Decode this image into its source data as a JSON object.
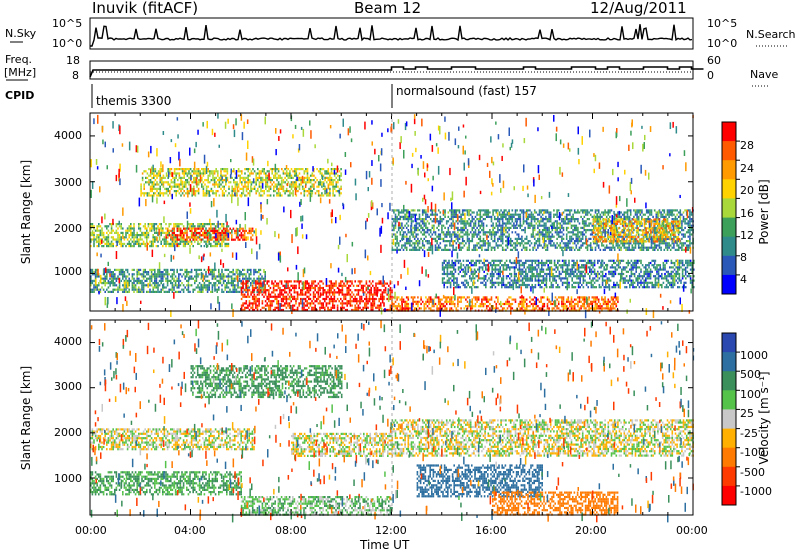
{
  "header": {
    "station": "Inuvik (fitACF)",
    "beam": "Beam 12",
    "date": "12/Aug/2011"
  },
  "panels": {
    "nsky": {
      "label": "N.Sky",
      "right_label": "N.Search",
      "left_ticks": [
        "10^5",
        "10^0"
      ],
      "right_ticks": [
        "10^5",
        "10^0"
      ]
    },
    "freq": {
      "label_line1": "Freq.",
      "label_line2": "[MHz]",
      "left_ticks": [
        "18",
        "8"
      ],
      "right_ticks": [
        "60",
        "0"
      ],
      "right_label": "Nave"
    },
    "cpid": {
      "label": "CPID",
      "programs": [
        {
          "name": "themis 3300",
          "start_hour": 0
        },
        {
          "name": "normalsound (fast) 157",
          "start_hour": 12
        }
      ]
    }
  },
  "colorbars": {
    "power": {
      "title": "Power [dB]",
      "ticks": [
        "28",
        "24",
        "20",
        "16",
        "12",
        "8",
        "4"
      ],
      "colors": [
        "#ff0000",
        "#ff5a00",
        "#ff9a00",
        "#ffd200",
        "#a8d83a",
        "#3ca05a",
        "#2f8a8a",
        "#2a58b8",
        "#0000ff"
      ]
    },
    "velocity": {
      "title": "Velocity [m s⁻¹]",
      "ticks": [
        "1000",
        "500",
        "100",
        "25",
        "-25",
        "-100",
        "-500",
        "-1000"
      ],
      "colors": [
        "#2a48b0",
        "#2c6fa0",
        "#3a8f5a",
        "#55c24a",
        "#c8c8c8",
        "#ffb000",
        "#ff7a00",
        "#ff3a00",
        "#ff0000"
      ]
    }
  },
  "axes": {
    "xlabel": "Time UT",
    "ylabel": "Slant Range [km]",
    "x_ticks": [
      "00:00",
      "04:00",
      "08:00",
      "12:00",
      "16:00",
      "20:00",
      "00:00"
    ],
    "y_ticks": [
      "1000",
      "2000",
      "3000",
      "4000"
    ]
  },
  "chart_data": {
    "type": "heatmap",
    "x_range_hours": [
      0,
      24
    ],
    "y_range_km": [
      180,
      4500
    ],
    "grid": false,
    "panels": [
      {
        "name": "Power [dB]",
        "color_range": [
          0,
          30
        ],
        "regions": [
          {
            "t0": 0.0,
            "t1": 5.5,
            "r0": 1600,
            "r1": 2100,
            "value": 14
          },
          {
            "t0": 3.0,
            "t1": 6.5,
            "r0": 1750,
            "r1": 2000,
            "value": 26
          },
          {
            "t0": 0.0,
            "t1": 7.0,
            "r0": 600,
            "r1": 1100,
            "value": 10
          },
          {
            "t0": 6.0,
            "t1": 12.0,
            "r0": 200,
            "r1": 850,
            "value": 28
          },
          {
            "t0": 12.0,
            "t1": 21.0,
            "r0": 200,
            "r1": 500,
            "value": 24
          },
          {
            "t0": 12.0,
            "t1": 24.0,
            "r0": 1500,
            "r1": 2400,
            "value": 9
          },
          {
            "t0": 20.0,
            "t1": 23.5,
            "r0": 1700,
            "r1": 2200,
            "value": 20
          },
          {
            "t0": 2.0,
            "t1": 10.0,
            "r0": 2700,
            "r1": 3300,
            "value": 16
          },
          {
            "t0": 14.0,
            "t1": 24.0,
            "r0": 700,
            "r1": 1300,
            "value": 8
          }
        ]
      },
      {
        "name": "Velocity [m s-1]",
        "color_range": [
          -1000,
          1000
        ],
        "regions": [
          {
            "t0": 0.0,
            "t1": 6.5,
            "r0": 1650,
            "r1": 2100,
            "value": 0
          },
          {
            "t0": 0.0,
            "t1": 6.0,
            "r0": 650,
            "r1": 1150,
            "value": 110
          },
          {
            "t0": 4.0,
            "t1": 10.0,
            "r0": 2800,
            "r1": 3500,
            "value": 150
          },
          {
            "t0": 6.0,
            "t1": 12.0,
            "r0": 200,
            "r1": 600,
            "value": 60
          },
          {
            "t0": 8.0,
            "t1": 12.0,
            "r0": 1500,
            "r1": 2000,
            "value": 0
          },
          {
            "t0": 12.0,
            "t1": 24.0,
            "r0": 1500,
            "r1": 2300,
            "value": 0
          },
          {
            "t0": 13.0,
            "t1": 18.0,
            "r0": 600,
            "r1": 1300,
            "value": 600
          },
          {
            "t0": 16.0,
            "t1": 21.0,
            "r0": 200,
            "r1": 700,
            "value": -300
          }
        ]
      }
    ]
  }
}
